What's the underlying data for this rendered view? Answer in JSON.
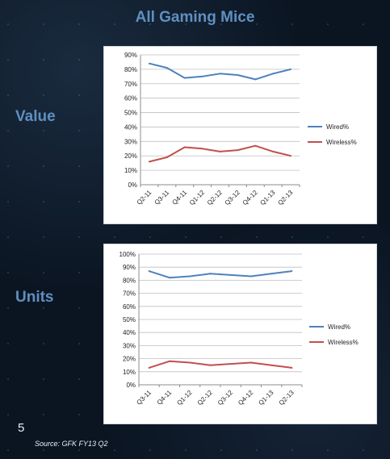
{
  "title": "All Gaming Mice",
  "labels": {
    "value": "Value",
    "units": "Units"
  },
  "page_number": "5",
  "source": "Source: GFK FY13 Q2",
  "colors": {
    "wired": "#4f81bd",
    "wireless": "#c0504d",
    "title": "#5f8fc0"
  },
  "chart_data": [
    {
      "type": "line",
      "categories": [
        "Q2-11",
        "Q3-11",
        "Q4-11",
        "Q1-12",
        "Q2-12",
        "Q3-12",
        "Q4-12",
        "Q1-13",
        "Q2-13"
      ],
      "ylim": [
        0,
        90
      ],
      "yticks": [
        "0%",
        "10%",
        "20%",
        "30%",
        "40%",
        "50%",
        "60%",
        "70%",
        "80%",
        "90%"
      ],
      "grid": true,
      "legend": "right",
      "series": [
        {
          "name": "Wired%",
          "values": [
            84,
            81,
            74,
            75,
            77,
            76,
            73,
            77,
            80
          ]
        },
        {
          "name": "Wireless%",
          "values": [
            16,
            19,
            26,
            25,
            23,
            24,
            27,
            23,
            20
          ]
        }
      ]
    },
    {
      "type": "line",
      "categories": [
        "Q3-11",
        "Q4-11",
        "Q1-12",
        "Q2-12",
        "Q3-12",
        "Q4-12",
        "Q1-13",
        "Q2-13"
      ],
      "ylim": [
        0,
        100
      ],
      "yticks": [
        "0%",
        "10%",
        "20%",
        "30%",
        "40%",
        "50%",
        "60%",
        "70%",
        "80%",
        "90%",
        "100%"
      ],
      "grid": true,
      "legend": "right",
      "series": [
        {
          "name": "Wired%",
          "values": [
            87,
            82,
            83,
            85,
            84,
            83,
            85,
            87
          ]
        },
        {
          "name": "Wireless%",
          "values": [
            13,
            18,
            17,
            15,
            16,
            17,
            15,
            13
          ]
        }
      ]
    }
  ]
}
